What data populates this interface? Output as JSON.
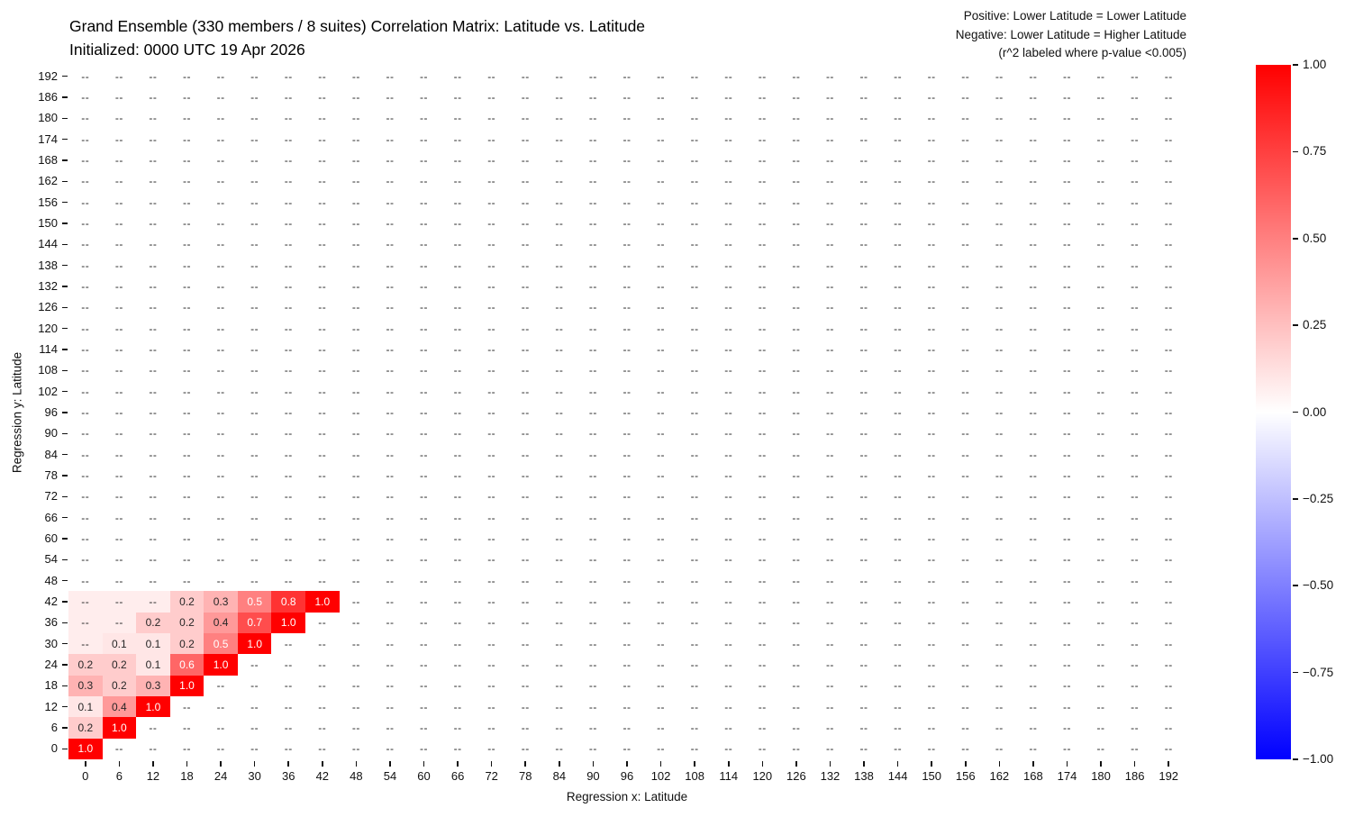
{
  "header": {
    "title_line1": "Grand Ensemble (330 members / 8 suites) Correlation Matrix: Latitude vs. Latitude",
    "title_line2": "Initialized: 0000 UTC 19 Apr 2026",
    "note_line1": "Positive: Lower Latitude = Lower Latitude",
    "note_line2": "Negative: Lower Latitude = Higher Latitude",
    "note_line3": "(r^2 labeled where p-value <0.005)"
  },
  "chart_data": {
    "type": "heatmap",
    "xlabel": "Regression x: Latitude",
    "ylabel": "Regression y: Latitude",
    "x_categories": [
      0,
      6,
      12,
      18,
      24,
      30,
      36,
      42,
      48,
      54,
      60,
      66,
      72,
      78,
      84,
      90,
      96,
      102,
      108,
      114,
      120,
      126,
      132,
      138,
      144,
      150,
      156,
      162,
      168,
      174,
      180,
      186,
      192
    ],
    "y_categories": [
      0,
      6,
      12,
      18,
      24,
      30,
      36,
      42,
      48,
      54,
      60,
      66,
      72,
      78,
      84,
      90,
      96,
      102,
      108,
      114,
      120,
      126,
      132,
      138,
      144,
      150,
      156,
      162,
      168,
      174,
      180,
      186,
      192
    ],
    "empty_label": "--",
    "grid": false,
    "colormap": {
      "positive": "#ff0000",
      "zero": "#ffffff",
      "negative": "#0000ff"
    },
    "labeled_cells": [
      {
        "x": 0,
        "y": 0,
        "value": 1.0,
        "label": "1.0"
      },
      {
        "x": 0,
        "y": 6,
        "value": 0.2,
        "label": "0.2"
      },
      {
        "x": 6,
        "y": 6,
        "value": 1.0,
        "label": "1.0"
      },
      {
        "x": 0,
        "y": 12,
        "value": 0.1,
        "label": "0.1"
      },
      {
        "x": 6,
        "y": 12,
        "value": 0.4,
        "label": "0.4"
      },
      {
        "x": 12,
        "y": 12,
        "value": 1.0,
        "label": "1.0"
      },
      {
        "x": 0,
        "y": 18,
        "value": 0.3,
        "label": "0.3"
      },
      {
        "x": 6,
        "y": 18,
        "value": 0.2,
        "label": "0.2"
      },
      {
        "x": 12,
        "y": 18,
        "value": 0.3,
        "label": "0.3"
      },
      {
        "x": 18,
        "y": 18,
        "value": 1.0,
        "label": "1.0"
      },
      {
        "x": 0,
        "y": 24,
        "value": 0.2,
        "label": "0.2"
      },
      {
        "x": 6,
        "y": 24,
        "value": 0.2,
        "label": "0.2"
      },
      {
        "x": 12,
        "y": 24,
        "value": 0.1,
        "label": "0.1"
      },
      {
        "x": 18,
        "y": 24,
        "value": 0.6,
        "label": "0.6"
      },
      {
        "x": 24,
        "y": 24,
        "value": 1.0,
        "label": "1.0"
      },
      {
        "x": 6,
        "y": 30,
        "value": 0.1,
        "label": "0.1"
      },
      {
        "x": 12,
        "y": 30,
        "value": 0.1,
        "label": "0.1"
      },
      {
        "x": 18,
        "y": 30,
        "value": 0.2,
        "label": "0.2"
      },
      {
        "x": 24,
        "y": 30,
        "value": 0.5,
        "label": "0.5"
      },
      {
        "x": 30,
        "y": 30,
        "value": 1.0,
        "label": "1.0"
      },
      {
        "x": 12,
        "y": 36,
        "value": 0.2,
        "label": "0.2"
      },
      {
        "x": 18,
        "y": 36,
        "value": 0.2,
        "label": "0.2"
      },
      {
        "x": 24,
        "y": 36,
        "value": 0.4,
        "label": "0.4"
      },
      {
        "x": 30,
        "y": 36,
        "value": 0.7,
        "label": "0.7"
      },
      {
        "x": 36,
        "y": 36,
        "value": 1.0,
        "label": "1.0"
      },
      {
        "x": 18,
        "y": 42,
        "value": 0.2,
        "label": "0.2"
      },
      {
        "x": 24,
        "y": 42,
        "value": 0.3,
        "label": "0.3"
      },
      {
        "x": 30,
        "y": 42,
        "value": 0.5,
        "label": "0.5"
      },
      {
        "x": 36,
        "y": 42,
        "value": 0.8,
        "label": "0.8"
      },
      {
        "x": 42,
        "y": 42,
        "value": 1.0,
        "label": "1.0"
      }
    ],
    "faint_cells": [
      {
        "x": 0,
        "y": 30,
        "value": 0.07
      },
      {
        "x": 0,
        "y": 36,
        "value": 0.07
      },
      {
        "x": 6,
        "y": 36,
        "value": 0.07
      },
      {
        "x": 0,
        "y": 42,
        "value": 0.07
      },
      {
        "x": 6,
        "y": 42,
        "value": 0.07
      },
      {
        "x": 12,
        "y": 42,
        "value": 0.07
      }
    ],
    "colorbar": {
      "vmin": -1,
      "vmax": 1,
      "tick_values": [
        1,
        0.75,
        0.5,
        0.25,
        0,
        -0.25,
        -0.5,
        -0.75,
        -1
      ],
      "tick_labels": [
        "1.00",
        "0.75",
        "0.50",
        "0.25",
        "0.00",
        "−0.25",
        "−0.50",
        "−0.75",
        "−1.00"
      ]
    }
  }
}
